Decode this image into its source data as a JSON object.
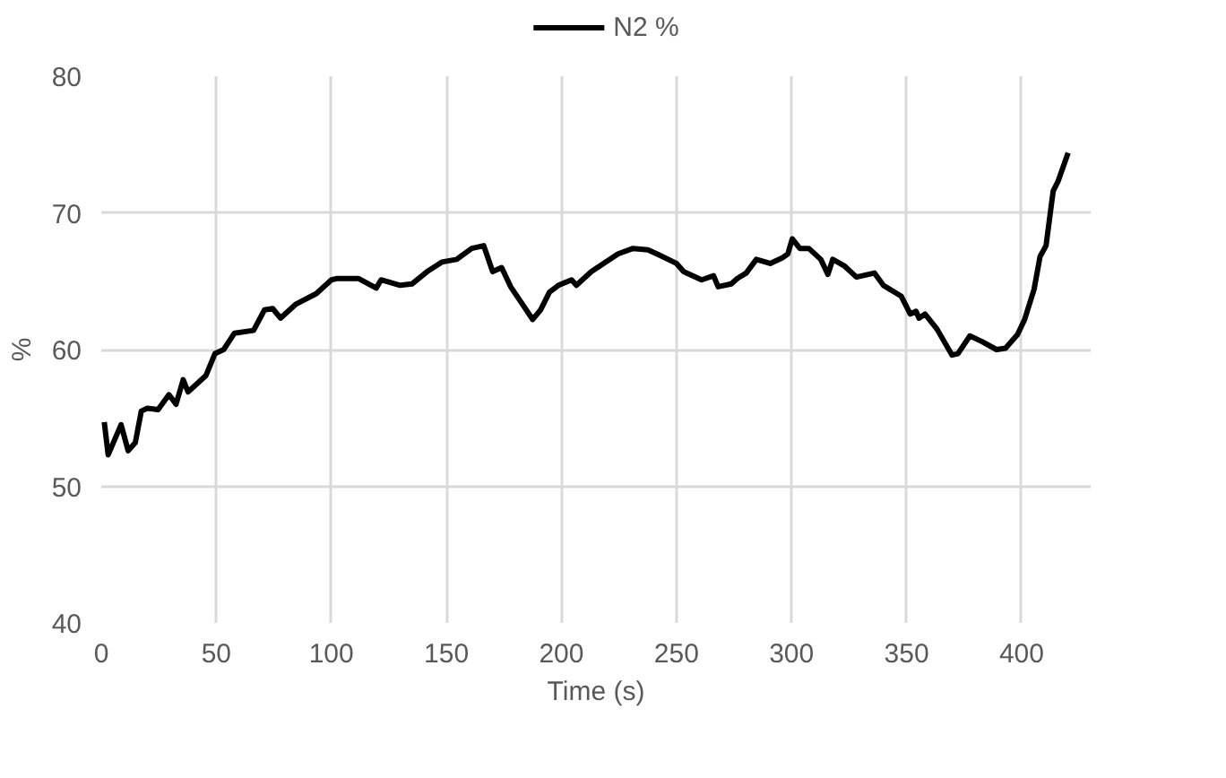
{
  "chart_data": {
    "type": "line",
    "xlabel": "Time (s)",
    "ylabel": "%",
    "xlim": [
      0,
      430
    ],
    "ylim": [
      40,
      80
    ],
    "xticks": [
      0,
      50,
      100,
      150,
      200,
      250,
      300,
      350,
      400
    ],
    "yticks": [
      40,
      50,
      60,
      70,
      80
    ],
    "grid": true,
    "legend": "top",
    "line_style": "solid",
    "marker": "none",
    "x": [
      1.3,
      3,
      8.6,
      11.7,
      14.8,
      17.4,
      20,
      24.7,
      29.4,
      32.5,
      35.6,
      37.7,
      45.5,
      49.4,
      53.2,
      57.9,
      66.2,
      70.9,
      74.5,
      77.9,
      84.4,
      93.5,
      100,
      102.6,
      111.7,
      119.5,
      121.6,
      129.9,
      135,
      141.6,
      148,
      154.5,
      161,
      166.2,
      170.1,
      174,
      177.9,
      183.1,
      187.5,
      190.9,
      194.8,
      198.7,
      204.4,
      206.5,
      213,
      224.6,
      231.1,
      237.6,
      242.7,
      250,
      253.1,
      260.9,
      266.1,
      268.1,
      273.8,
      276.4,
      280.3,
      284.7,
      290.7,
      295.9,
      298.4,
      300.3,
      303.6,
      307.5,
      312.7,
      315.8,
      317.9,
      323.1,
      328.2,
      336,
      339.9,
      347.7,
      351.6,
      354.1,
      355.4,
      358,
      363.2,
      369.7,
      372.3,
      377.5,
      382.6,
      389.1,
      393,
      398.2,
      401.3,
      405.4,
      408,
      410.6,
      413.7,
      415.8,
      420.2
    ],
    "series": [
      {
        "name": "N2 %",
        "color": "#000000",
        "values": [
          54.7,
          52.3,
          54.5,
          52.6,
          53.2,
          55.5,
          55.7,
          55.6,
          56.7,
          56.0,
          57.8,
          56.9,
          58.1,
          59.7,
          60.0,
          61.2,
          61.4,
          62.9,
          63.0,
          62.3,
          63.3,
          64.1,
          65.1,
          65.2,
          65.2,
          64.5,
          65.1,
          64.7,
          64.8,
          65.7,
          66.4,
          66.6,
          67.4,
          67.6,
          65.7,
          66.0,
          64.6,
          63.3,
          62.2,
          62.9,
          64.2,
          64.7,
          65.1,
          64.7,
          65.7,
          67.0,
          67.4,
          67.3,
          66.9,
          66.3,
          65.7,
          65.1,
          65.4,
          64.6,
          64.8,
          65.2,
          65.6,
          66.6,
          66.3,
          66.7,
          67.0,
          68.1,
          67.4,
          67.4,
          66.6,
          65.5,
          66.6,
          66.1,
          65.3,
          65.6,
          64.7,
          63.9,
          62.6,
          62.8,
          62.3,
          62.6,
          61.5,
          59.6,
          59.7,
          61.0,
          60.6,
          60.0,
          60.1,
          61.1,
          62.2,
          64.4,
          66.8,
          67.6,
          71.6,
          72.3,
          74.4
        ]
      }
    ]
  }
}
